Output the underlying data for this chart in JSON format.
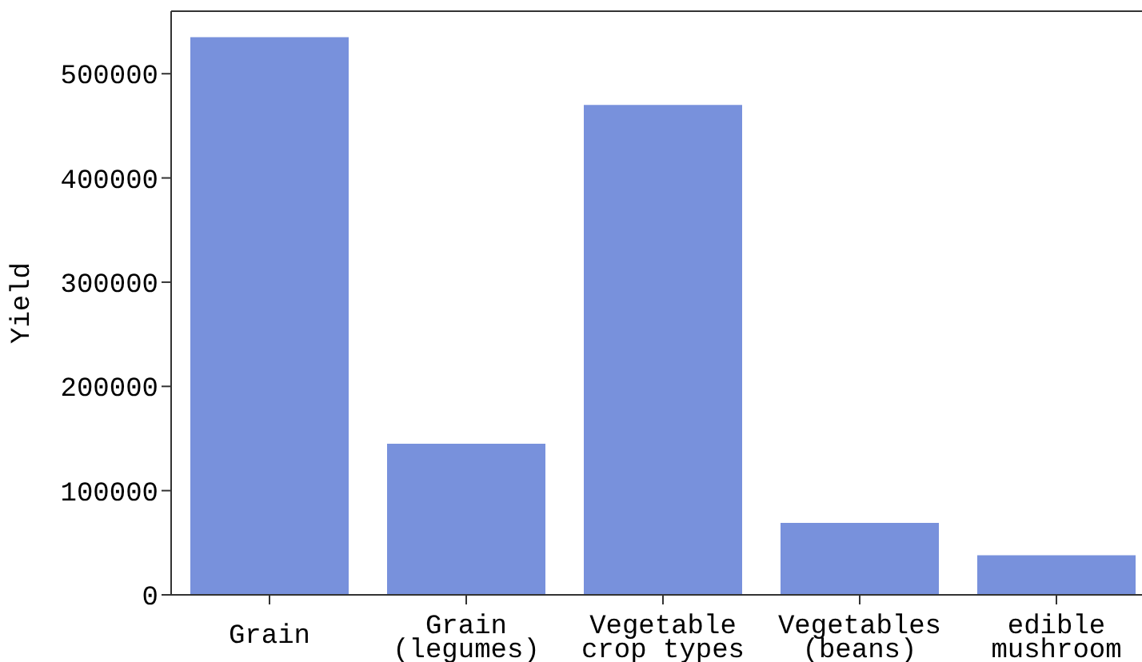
{
  "chart_data": {
    "type": "bar",
    "ylabel": "Yield",
    "categories": [
      "Grain",
      "Grain\n(legumes)",
      "Vegetable\ncrop types",
      "Vegetables\n(beans)",
      "edible\nmushroom"
    ],
    "values": [
      535000,
      145000,
      470000,
      69000,
      38000
    ],
    "color": "#7891dc",
    "ylim": [
      0,
      560000
    ],
    "yticks": [
      0,
      100000,
      200000,
      300000,
      400000,
      500000
    ],
    "grid": false,
    "legend": false
  }
}
